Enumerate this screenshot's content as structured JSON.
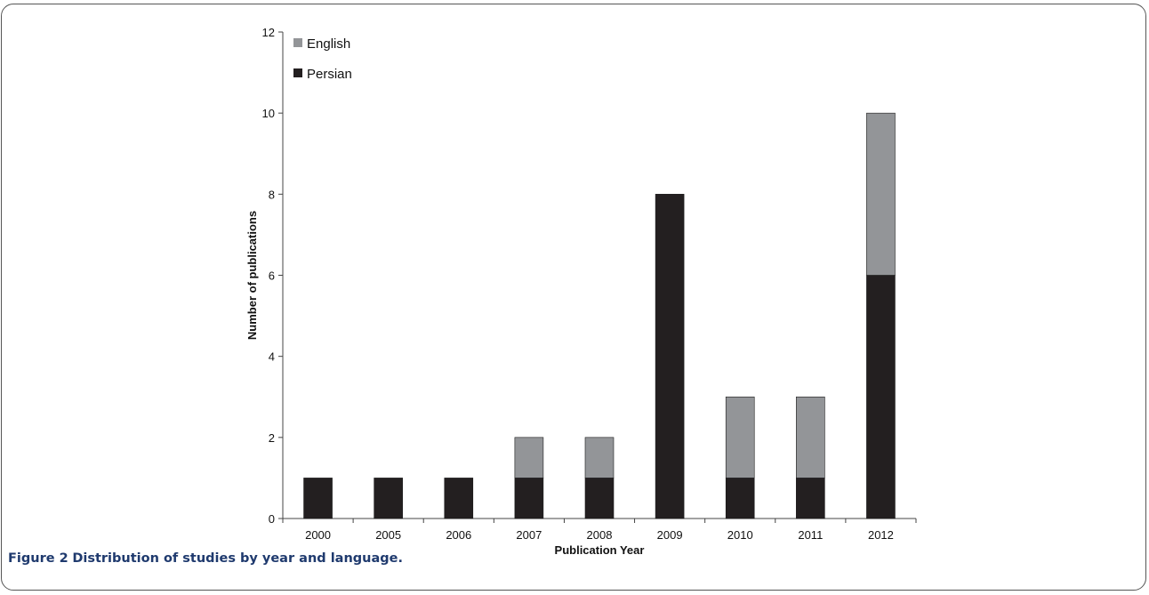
{
  "figure": {
    "caption_label": "Figure 2",
    "caption_text": "Distribution of studies by year and language."
  },
  "chart_data": {
    "type": "bar",
    "stacked": true,
    "categories": [
      "2000",
      "2005",
      "2006",
      "2007",
      "2008",
      "2009",
      "2010",
      "2011",
      "2012"
    ],
    "series": [
      {
        "name": "Persian",
        "values": [
          1,
          1,
          1,
          1,
          1,
          8,
          1,
          1,
          6
        ],
        "color": "#231f20"
      },
      {
        "name": "English",
        "values": [
          0,
          0,
          0,
          1,
          1,
          0,
          2,
          2,
          4
        ],
        "color": "#939598"
      }
    ],
    "legend_order": [
      "English",
      "Persian"
    ],
    "legend_position": "top-left",
    "xlabel": "Publication Year",
    "ylabel": "Number of publications",
    "ylim": [
      0,
      12
    ],
    "yticks": [
      0,
      2,
      4,
      6,
      8,
      10,
      12
    ],
    "grid": false
  }
}
